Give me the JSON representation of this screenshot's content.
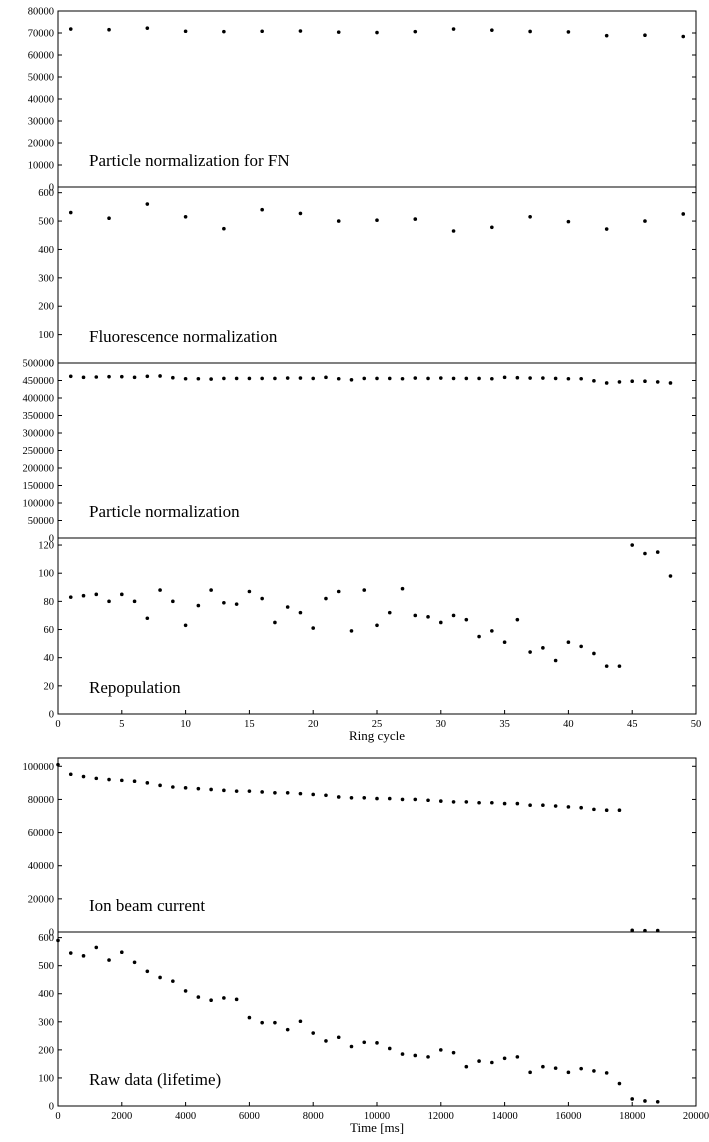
{
  "chart_data": [
    {
      "type": "scatter",
      "title": "Particle normalization for FN",
      "xlim": [
        0,
        50
      ],
      "ylim": [
        0,
        80000
      ],
      "yticks": [
        0,
        10000,
        20000,
        30000,
        40000,
        50000,
        60000,
        70000,
        80000
      ],
      "points": [
        [
          1,
          71800
        ],
        [
          4,
          71500
        ],
        [
          7,
          72200
        ],
        [
          10,
          70800
        ],
        [
          13,
          70600
        ],
        [
          16,
          70800
        ],
        [
          19,
          70900
        ],
        [
          22,
          70400
        ],
        [
          25,
          70200
        ],
        [
          28,
          70600
        ],
        [
          31,
          71800
        ],
        [
          34,
          71300
        ],
        [
          37,
          70700
        ],
        [
          40,
          70500
        ],
        [
          43,
          68800
        ],
        [
          46,
          69000
        ],
        [
          49,
          68400
        ]
      ]
    },
    {
      "type": "scatter",
      "title": "Fluorescence normalization",
      "xlim": [
        0,
        50
      ],
      "ylim": [
        0,
        620
      ],
      "yticks": [
        0,
        100,
        200,
        300,
        400,
        500,
        600
      ],
      "points": [
        [
          1,
          530
        ],
        [
          4,
          510
        ],
        [
          7,
          560
        ],
        [
          10,
          515
        ],
        [
          13,
          473
        ],
        [
          16,
          540
        ],
        [
          19,
          527
        ],
        [
          22,
          500
        ],
        [
          25,
          503
        ],
        [
          28,
          507
        ],
        [
          31,
          465
        ],
        [
          34,
          478
        ],
        [
          37,
          515
        ],
        [
          40,
          498
        ],
        [
          43,
          472
        ],
        [
          46,
          500
        ],
        [
          49,
          525
        ]
      ]
    },
    {
      "type": "scatter",
      "title": "Particle normalization",
      "xlim": [
        0,
        50
      ],
      "ylim": [
        0,
        500000
      ],
      "yticks": [
        0,
        50000,
        100000,
        150000,
        200000,
        250000,
        300000,
        350000,
        400000,
        450000,
        500000
      ],
      "points": [
        [
          1,
          462000
        ],
        [
          2,
          459000
        ],
        [
          3,
          460000
        ],
        [
          4,
          461000
        ],
        [
          5,
          461000
        ],
        [
          6,
          459000
        ],
        [
          7,
          462000
        ],
        [
          8,
          463000
        ],
        [
          9,
          458000
        ],
        [
          10,
          455000
        ],
        [
          11,
          455000
        ],
        [
          12,
          454000
        ],
        [
          13,
          456000
        ],
        [
          14,
          456000
        ],
        [
          15,
          456000
        ],
        [
          16,
          456000
        ],
        [
          17,
          456000
        ],
        [
          18,
          457000
        ],
        [
          19,
          457000
        ],
        [
          20,
          456000
        ],
        [
          21,
          459000
        ],
        [
          22,
          455000
        ],
        [
          23,
          452000
        ],
        [
          24,
          456000
        ],
        [
          25,
          456000
        ],
        [
          26,
          456000
        ],
        [
          27,
          455000
        ],
        [
          28,
          457000
        ],
        [
          29,
          456000
        ],
        [
          30,
          457000
        ],
        [
          31,
          456000
        ],
        [
          32,
          456000
        ],
        [
          33,
          456000
        ],
        [
          34,
          455000
        ],
        [
          35,
          459000
        ],
        [
          36,
          458000
        ],
        [
          37,
          457000
        ],
        [
          38,
          457000
        ],
        [
          39,
          456000
        ],
        [
          40,
          455000
        ],
        [
          41,
          455000
        ],
        [
          42,
          449000
        ],
        [
          43,
          443000
        ],
        [
          44,
          446000
        ],
        [
          45,
          448000
        ],
        [
          46,
          448000
        ],
        [
          47,
          446000
        ],
        [
          48,
          443000
        ]
      ]
    },
    {
      "type": "scatter",
      "title": "Repopulation",
      "xlabel": "Ring cycle",
      "xlim": [
        0,
        50
      ],
      "ylim": [
        0,
        125
      ],
      "xticks": [
        0,
        5,
        10,
        15,
        20,
        25,
        30,
        35,
        40,
        45,
        50
      ],
      "yticks": [
        0,
        20,
        40,
        60,
        80,
        100,
        120
      ],
      "points": [
        [
          1,
          83
        ],
        [
          2,
          84
        ],
        [
          3,
          85
        ],
        [
          4,
          80
        ],
        [
          5,
          85
        ],
        [
          6,
          80
        ],
        [
          7,
          68
        ],
        [
          8,
          88
        ],
        [
          9,
          80
        ],
        [
          10,
          63
        ],
        [
          11,
          77
        ],
        [
          12,
          88
        ],
        [
          13,
          79
        ],
        [
          14,
          78
        ],
        [
          15,
          87
        ],
        [
          16,
          82
        ],
        [
          17,
          65
        ],
        [
          18,
          76
        ],
        [
          19,
          72
        ],
        [
          20,
          61
        ],
        [
          21,
          82
        ],
        [
          22,
          87
        ],
        [
          23,
          59
        ],
        [
          24,
          88
        ],
        [
          25,
          63
        ],
        [
          26,
          72
        ],
        [
          27,
          89
        ],
        [
          28,
          70
        ],
        [
          29,
          69
        ],
        [
          30,
          65
        ],
        [
          31,
          70
        ],
        [
          32,
          67
        ],
        [
          33,
          55
        ],
        [
          34,
          59
        ],
        [
          35,
          51
        ],
        [
          36,
          67
        ],
        [
          37,
          44
        ],
        [
          38,
          47
        ],
        [
          39,
          38
        ],
        [
          40,
          51
        ],
        [
          41,
          48
        ],
        [
          42,
          43
        ],
        [
          43,
          34
        ],
        [
          44,
          34
        ],
        [
          45,
          120
        ],
        [
          46,
          114
        ],
        [
          47,
          115
        ],
        [
          48,
          98
        ]
      ]
    },
    {
      "type": "scatter",
      "title": "Ion beam current",
      "xlim": [
        0,
        20000
      ],
      "ylim": [
        0,
        105000
      ],
      "yticks": [
        0,
        20000,
        40000,
        60000,
        80000,
        100000
      ],
      "points": [
        [
          0,
          101000
        ],
        [
          400,
          95200
        ],
        [
          800,
          93800
        ],
        [
          1200,
          92700
        ],
        [
          1600,
          92000
        ],
        [
          2000,
          91500
        ],
        [
          2400,
          91000
        ],
        [
          2800,
          90000
        ],
        [
          3200,
          88500
        ],
        [
          3600,
          87500
        ],
        [
          4000,
          87000
        ],
        [
          4400,
          86500
        ],
        [
          4800,
          86000
        ],
        [
          5200,
          85500
        ],
        [
          5600,
          85000
        ],
        [
          6000,
          85000
        ],
        [
          6400,
          84500
        ],
        [
          6800,
          84000
        ],
        [
          7200,
          84000
        ],
        [
          7600,
          83500
        ],
        [
          8000,
          83000
        ],
        [
          8400,
          82500
        ],
        [
          8800,
          81500
        ],
        [
          9200,
          81000
        ],
        [
          9600,
          81000
        ],
        [
          10000,
          80500
        ],
        [
          10400,
          80500
        ],
        [
          10800,
          80000
        ],
        [
          11200,
          80000
        ],
        [
          11600,
          79500
        ],
        [
          12000,
          79000
        ],
        [
          12400,
          78500
        ],
        [
          12800,
          78500
        ],
        [
          13200,
          78000
        ],
        [
          13600,
          78000
        ],
        [
          14000,
          77500
        ],
        [
          14400,
          77500
        ],
        [
          14800,
          76500
        ],
        [
          15200,
          76500
        ],
        [
          15600,
          76000
        ],
        [
          16000,
          75500
        ],
        [
          16400,
          75000
        ],
        [
          16800,
          74000
        ],
        [
          17200,
          73500
        ],
        [
          17600,
          73500
        ],
        [
          18000,
          1000
        ],
        [
          18400,
          800
        ],
        [
          18800,
          900
        ]
      ]
    },
    {
      "type": "scatter",
      "title": "Raw data (lifetime)",
      "xlabel": "Time [ms]",
      "xlim": [
        0,
        20000
      ],
      "ylim": [
        0,
        620
      ],
      "xticks": [
        0,
        2000,
        4000,
        6000,
        8000,
        10000,
        12000,
        14000,
        16000,
        18000,
        20000
      ],
      "yticks": [
        0,
        100,
        200,
        300,
        400,
        500,
        600
      ],
      "points": [
        [
          0,
          590
        ],
        [
          400,
          545
        ],
        [
          800,
          535
        ],
        [
          1200,
          565
        ],
        [
          1600,
          520
        ],
        [
          2000,
          548
        ],
        [
          2400,
          512
        ],
        [
          2800,
          480
        ],
        [
          3200,
          458
        ],
        [
          3600,
          445
        ],
        [
          4000,
          410
        ],
        [
          4400,
          388
        ],
        [
          4800,
          377
        ],
        [
          5200,
          385
        ],
        [
          5600,
          380
        ],
        [
          6000,
          315
        ],
        [
          6400,
          297
        ],
        [
          6800,
          297
        ],
        [
          7200,
          272
        ],
        [
          7600,
          302
        ],
        [
          8000,
          260
        ],
        [
          8400,
          232
        ],
        [
          8800,
          245
        ],
        [
          9200,
          212
        ],
        [
          9600,
          227
        ],
        [
          10000,
          225
        ],
        [
          10400,
          205
        ],
        [
          10800,
          185
        ],
        [
          11200,
          180
        ],
        [
          11600,
          175
        ],
        [
          12000,
          200
        ],
        [
          12400,
          190
        ],
        [
          12800,
          140
        ],
        [
          13200,
          160
        ],
        [
          13600,
          155
        ],
        [
          14000,
          170
        ],
        [
          14400,
          175
        ],
        [
          14800,
          120
        ],
        [
          15200,
          140
        ],
        [
          15600,
          135
        ],
        [
          16000,
          120
        ],
        [
          16400,
          133
        ],
        [
          16800,
          125
        ],
        [
          17200,
          118
        ],
        [
          17600,
          80
        ],
        [
          18000,
          25
        ],
        [
          18400,
          18
        ],
        [
          18800,
          15
        ]
      ]
    }
  ]
}
